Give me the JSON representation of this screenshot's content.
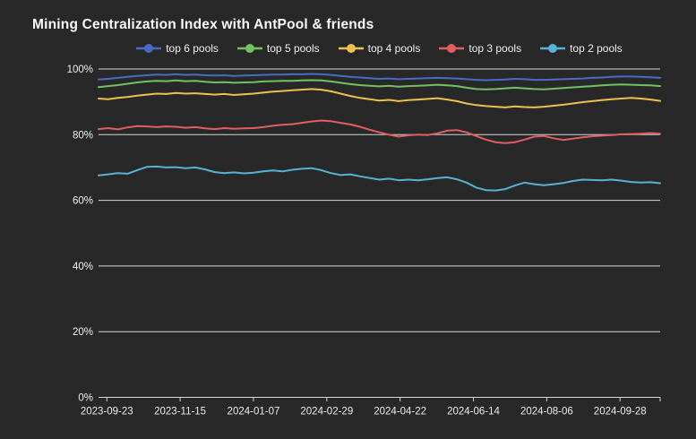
{
  "chart": {
    "title": "Mining Centralization Index with AntPool & friends",
    "colors": {
      "background": "#282828",
      "grid": "#d6d6d6",
      "axis": "#d6d6d6",
      "title_text": "#fafafa",
      "label_text": "#efefef",
      "legend_text": "#f0f0f0"
    }
  },
  "chart_data": {
    "type": "line",
    "title": "Mining Centralization Index with AntPool & friends",
    "xlabel": "",
    "ylabel": "",
    "ylim": [
      0,
      100
    ],
    "grid": true,
    "legend_position": "top-center",
    "x_axis_range": [
      "2023-09-17",
      "2024-10-27"
    ],
    "x_interval_days": 7,
    "x_ticks": [
      "2023-09-23",
      "2023-11-15",
      "2024-01-07",
      "2024-02-29",
      "2024-04-22",
      "2024-06-14",
      "2024-08-06",
      "2024-09-28"
    ],
    "y_ticks": [
      "0%",
      "20%",
      "40%",
      "60%",
      "80%",
      "100%"
    ],
    "unit": "%",
    "series": [
      {
        "name": "top 6 pools",
        "color": "#4a6bc5",
        "values": [
          96.8,
          97.0,
          97.3,
          97.6,
          97.9,
          98.1,
          98.3,
          98.2,
          98.4,
          98.2,
          98.3,
          98.1,
          98.0,
          98.1,
          97.9,
          98.0,
          98.1,
          98.2,
          98.3,
          98.3,
          98.4,
          98.4,
          98.5,
          98.4,
          98.2,
          97.9,
          97.6,
          97.4,
          97.2,
          97.0,
          97.1,
          96.9,
          97.0,
          97.1,
          97.2,
          97.3,
          97.2,
          97.1,
          96.9,
          96.7,
          96.6,
          96.7,
          96.8,
          97.0,
          96.9,
          96.7,
          96.7,
          96.8,
          96.9,
          97.0,
          97.1,
          97.3,
          97.4,
          97.6,
          97.7,
          97.7,
          97.6,
          97.5,
          97.3
        ]
      },
      {
        "name": "top 5 pools",
        "color": "#74c162",
        "values": [
          94.5,
          94.8,
          95.1,
          95.5,
          95.9,
          96.2,
          96.4,
          96.3,
          96.5,
          96.3,
          96.4,
          96.1,
          95.9,
          96.0,
          95.8,
          95.9,
          96.0,
          96.2,
          96.3,
          96.4,
          96.4,
          96.5,
          96.6,
          96.5,
          96.2,
          95.8,
          95.4,
          95.1,
          94.9,
          94.7,
          94.9,
          94.6,
          94.8,
          94.9,
          95.0,
          95.2,
          95.0,
          94.8,
          94.3,
          93.9,
          93.8,
          93.9,
          94.1,
          94.3,
          94.1,
          93.9,
          93.8,
          94.0,
          94.2,
          94.4,
          94.6,
          94.8,
          95.0,
          95.2,
          95.3,
          95.2,
          95.1,
          95.0,
          94.8
        ]
      },
      {
        "name": "top 4 pools",
        "color": "#eec14e",
        "values": [
          91.0,
          90.8,
          91.2,
          91.5,
          91.9,
          92.2,
          92.5,
          92.4,
          92.7,
          92.5,
          92.6,
          92.4,
          92.2,
          92.4,
          92.1,
          92.3,
          92.5,
          92.8,
          93.1,
          93.3,
          93.5,
          93.7,
          93.9,
          93.7,
          93.2,
          92.5,
          91.8,
          91.2,
          90.8,
          90.4,
          90.6,
          90.2,
          90.5,
          90.7,
          90.9,
          91.1,
          90.7,
          90.2,
          89.5,
          89.0,
          88.7,
          88.5,
          88.3,
          88.6,
          88.4,
          88.3,
          88.5,
          88.8,
          89.1,
          89.5,
          89.9,
          90.2,
          90.5,
          90.8,
          91.0,
          91.2,
          91.0,
          90.7,
          90.3
        ]
      },
      {
        "name": "top 3 pools",
        "color": "#e25f5f",
        "values": [
          81.7,
          82.0,
          81.6,
          82.2,
          82.6,
          82.5,
          82.3,
          82.5,
          82.4,
          82.1,
          82.3,
          81.9,
          81.7,
          82.0,
          81.8,
          81.9,
          82.0,
          82.3,
          82.7,
          83.0,
          83.2,
          83.6,
          84.0,
          84.3,
          84.1,
          83.6,
          83.1,
          82.4,
          81.5,
          80.7,
          80.0,
          79.4,
          79.8,
          80.0,
          79.9,
          80.4,
          81.2,
          81.4,
          80.7,
          79.6,
          78.5,
          77.7,
          77.4,
          77.7,
          78.5,
          79.4,
          79.6,
          78.9,
          78.4,
          78.8,
          79.2,
          79.5,
          79.7,
          79.9,
          80.1,
          80.2,
          80.3,
          80.5,
          80.3
        ]
      },
      {
        "name": "top 2 pools",
        "color": "#55b3d6",
        "values": [
          67.6,
          67.9,
          68.3,
          68.1,
          69.2,
          70.2,
          70.3,
          70.0,
          70.1,
          69.8,
          70.0,
          69.4,
          68.6,
          68.3,
          68.5,
          68.2,
          68.4,
          68.8,
          69.1,
          68.8,
          69.3,
          69.6,
          69.8,
          69.2,
          68.3,
          67.7,
          67.9,
          67.3,
          66.8,
          66.3,
          66.6,
          66.1,
          66.3,
          66.1,
          66.4,
          66.8,
          67.0,
          66.4,
          65.4,
          63.9,
          63.1,
          63.0,
          63.4,
          64.5,
          65.4,
          64.9,
          64.6,
          64.9,
          65.3,
          65.9,
          66.3,
          66.2,
          66.1,
          66.3,
          66.0,
          65.6,
          65.4,
          65.5,
          65.2
        ]
      }
    ]
  }
}
